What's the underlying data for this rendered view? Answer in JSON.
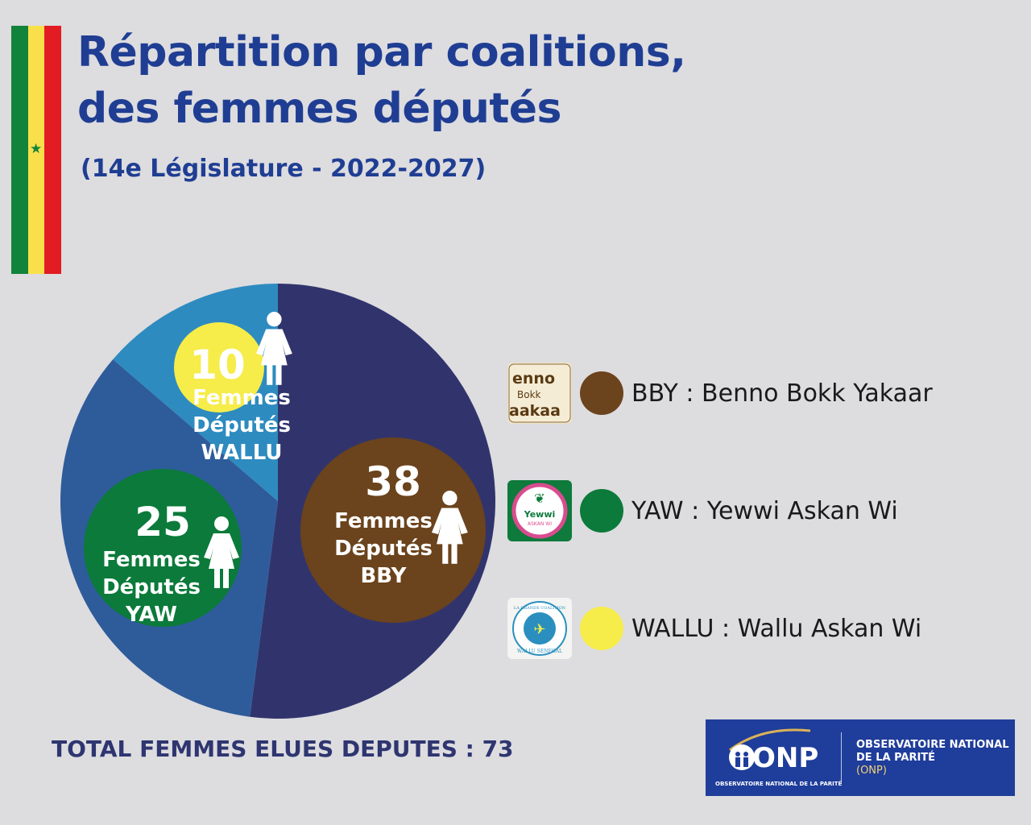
{
  "title": "Répartition par coalitions,\ndes femmes députés",
  "subtitle": "(14e Législature - 2022-2027)",
  "colors": {
    "title": "#1f3e93",
    "background": "#dddcdf",
    "flag_green": "#12833b",
    "flag_yellow": "#f9e04a",
    "flag_red": "#e31b23",
    "star": "#12833b"
  },
  "chart_data": {
    "type": "pie",
    "categories": [
      "BBY",
      "YAW",
      "WALLU"
    ],
    "values": [
      38,
      25,
      10
    ],
    "slice_colors": [
      "#31346c",
      "#2e5c9a",
      "#2e8bc0"
    ],
    "bubble_colors": [
      "#6b431c",
      "#0b7a3a",
      "#f6ec4a"
    ],
    "bubble_numbers": [
      "38",
      "25",
      "10"
    ],
    "bubble_labels": [
      [
        "Femmes",
        "Députés",
        "BBY"
      ],
      [
        "Femmes",
        "Députés",
        "YAW"
      ],
      [
        "Femmes",
        "Députés",
        "WALLU"
      ]
    ],
    "icon": "woman-icon"
  },
  "legend": [
    {
      "label": "BBY : Benno Bokk Yakaar",
      "color": "#6b431c",
      "logo_text": [
        "enno",
        "Bokk",
        "aakaa"
      ],
      "logo_icon": "bby-logo"
    },
    {
      "label": "YAW : Yewwi Askan Wi",
      "color": "#0b7a3a",
      "logo_text": [
        "Yewwi",
        "ASKAN WI"
      ],
      "logo_icon": "yaw-logo"
    },
    {
      "label": "WALLU : Wallu Askan Wi",
      "color": "#f6ec4a",
      "logo_text": [
        "LA GRANDE COALITION",
        "WALLU SENEGAL"
      ],
      "logo_icon": "wallu-logo"
    }
  ],
  "total": "TOTAL FEMMES ELUES DEPUTES : 73",
  "onp": {
    "abbr": "ONP",
    "small": "OBSERVATOIRE NATIONAL DE LA PARITÉ",
    "line1": "OBSERVATOIRE NATIONAL",
    "line2": "DE LA PARITÉ",
    "line3": "(ONP)"
  }
}
